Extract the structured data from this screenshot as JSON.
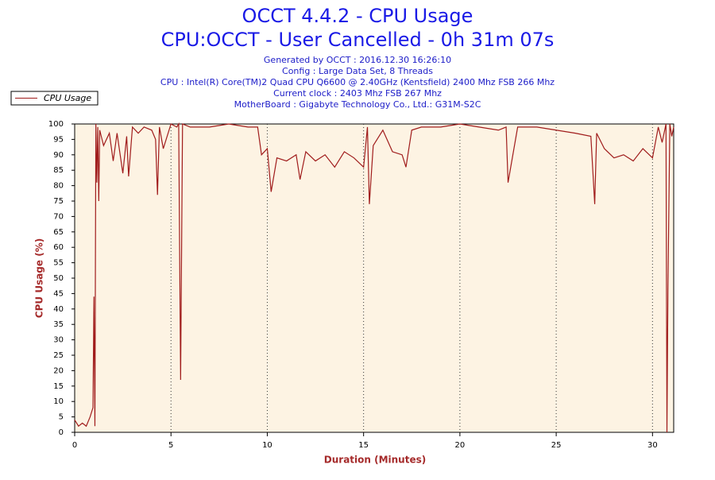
{
  "chart_data": {
    "type": "line",
    "title": "OCCT 4.4.2 - CPU Usage",
    "subtitle": "CPU:OCCT - User Cancelled - 0h 31m 07s",
    "info": [
      "Generated by OCCT : 2016.12.30 16:26:10",
      "Config : Large Data Set, 8 Threads",
      "CPU : Intel(R) Core(TM)2 Quad CPU Q6600 @ 2.40GHz (Kentsfield) 2400 Mhz FSB 266 Mhz",
      "Current clock : 2403 Mhz FSB 267 Mhz",
      "MotherBoard : Gigabyte Technology Co., Ltd.: G31M-S2C"
    ],
    "x_label": "Duration (Minutes)",
    "y_label": "CPU Usage (%)",
    "x": [
      0,
      0.2,
      0.4,
      0.6,
      0.8,
      0.95,
      1.0,
      1.05,
      1.1,
      1.15,
      1.2,
      1.25,
      1.3,
      1.5,
      1.8,
      2.0,
      2.2,
      2.5,
      2.7,
      2.8,
      3.0,
      3.3,
      3.6,
      4.0,
      4.2,
      4.3,
      4.4,
      4.6,
      5.0,
      5.3,
      5.4,
      5.5,
      5.6,
      6,
      7,
      8,
      9,
      9.5,
      9.7,
      10,
      10.2,
      10.5,
      11,
      11.5,
      11.7,
      12,
      12.5,
      13,
      13.5,
      14,
      14.5,
      15,
      15.2,
      15.3,
      15.5,
      16,
      16.5,
      17,
      17.2,
      17.5,
      18,
      19,
      20,
      21,
      22,
      22.4,
      22.5,
      23,
      24,
      25,
      26,
      26.8,
      27,
      27.1,
      27.5,
      28,
      28.5,
      29,
      29.5,
      30,
      30.3,
      30.5,
      30.7,
      30.75,
      30.8,
      30.9,
      31.0,
      31.1
    ],
    "series": [
      {
        "name": "CPU Usage",
        "color": "#a01c1c",
        "values": [
          4,
          2,
          3,
          2,
          5,
          8,
          44,
          2,
          100,
          81,
          99,
          75,
          98,
          93,
          97,
          88,
          97,
          84,
          96,
          83,
          99,
          97,
          99,
          98,
          95,
          77,
          99,
          92,
          100,
          99,
          100,
          17,
          100,
          99,
          99,
          100,
          99,
          99,
          90,
          92,
          78,
          89,
          88,
          90,
          82,
          91,
          88,
          90,
          86,
          91,
          89,
          86,
          99,
          74,
          93,
          98,
          91,
          90,
          86,
          98,
          99,
          99,
          100,
          99,
          98,
          99,
          81,
          99,
          99,
          98,
          97,
          96,
          74,
          97,
          92,
          89,
          90,
          88,
          92,
          89,
          99,
          94,
          100,
          0,
          46,
          100,
          96,
          99
        ]
      }
    ],
    "xlim": [
      0,
      31.1
    ],
    "ylim": [
      0,
      100
    ],
    "xticks": [
      0,
      5,
      10,
      15,
      20,
      25,
      30
    ],
    "yticks": [
      0,
      5,
      10,
      15,
      20,
      25,
      30,
      35,
      40,
      45,
      50,
      55,
      60,
      65,
      70,
      75,
      80,
      85,
      90,
      95,
      100
    ],
    "grid": true,
    "legend": "top-left"
  }
}
